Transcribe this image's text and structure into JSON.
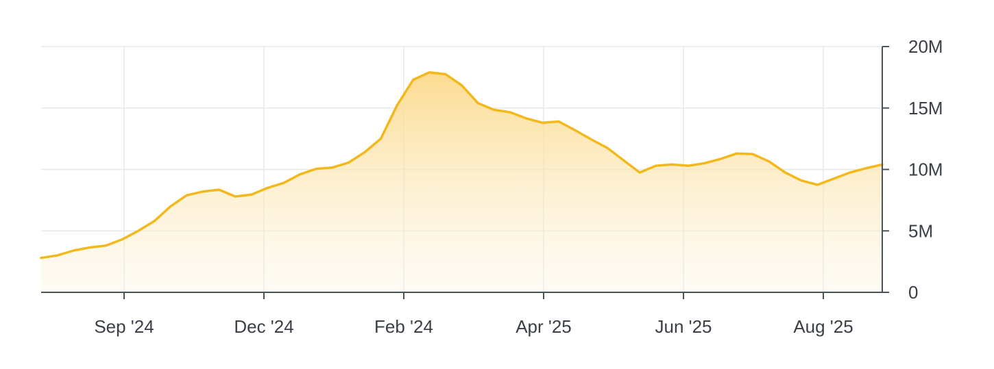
{
  "chart_data": {
    "type": "area",
    "title": "",
    "xlabel": "",
    "ylabel": "",
    "ylim": [
      0,
      20000000
    ],
    "grid": true,
    "y_axis_side": "right",
    "line_color": "#F2B81C",
    "fill_color": "#FBD98A",
    "x_tick_labels": [
      "Sep '24",
      "Dec '24",
      "Feb '24",
      "Apr '25",
      "Jun '25",
      "Aug '25"
    ],
    "y_tick_labels": [
      "0",
      "5M",
      "10M",
      "15M",
      "20M"
    ],
    "y_ticks": [
      0,
      5000000,
      10000000,
      15000000,
      20000000
    ],
    "values": [
      2.8,
      3.0,
      3.4,
      3.65,
      3.8,
      4.3,
      5.0,
      5.8,
      7.0,
      7.9,
      8.2,
      8.35,
      7.8,
      7.95,
      8.5,
      8.9,
      9.6,
      10.05,
      10.15,
      10.55,
      11.4,
      12.5,
      15.2,
      17.3,
      17.9,
      17.75,
      16.85,
      15.4,
      14.85,
      14.65,
      14.15,
      13.8,
      13.9,
      13.2,
      12.45,
      11.75,
      10.75,
      9.75,
      10.3,
      10.4,
      10.3,
      10.5,
      10.85,
      11.3,
      11.25,
      10.65,
      9.75,
      9.1,
      8.75,
      9.25,
      9.75,
      10.1,
      10.4
    ],
    "values_unit": "million"
  }
}
